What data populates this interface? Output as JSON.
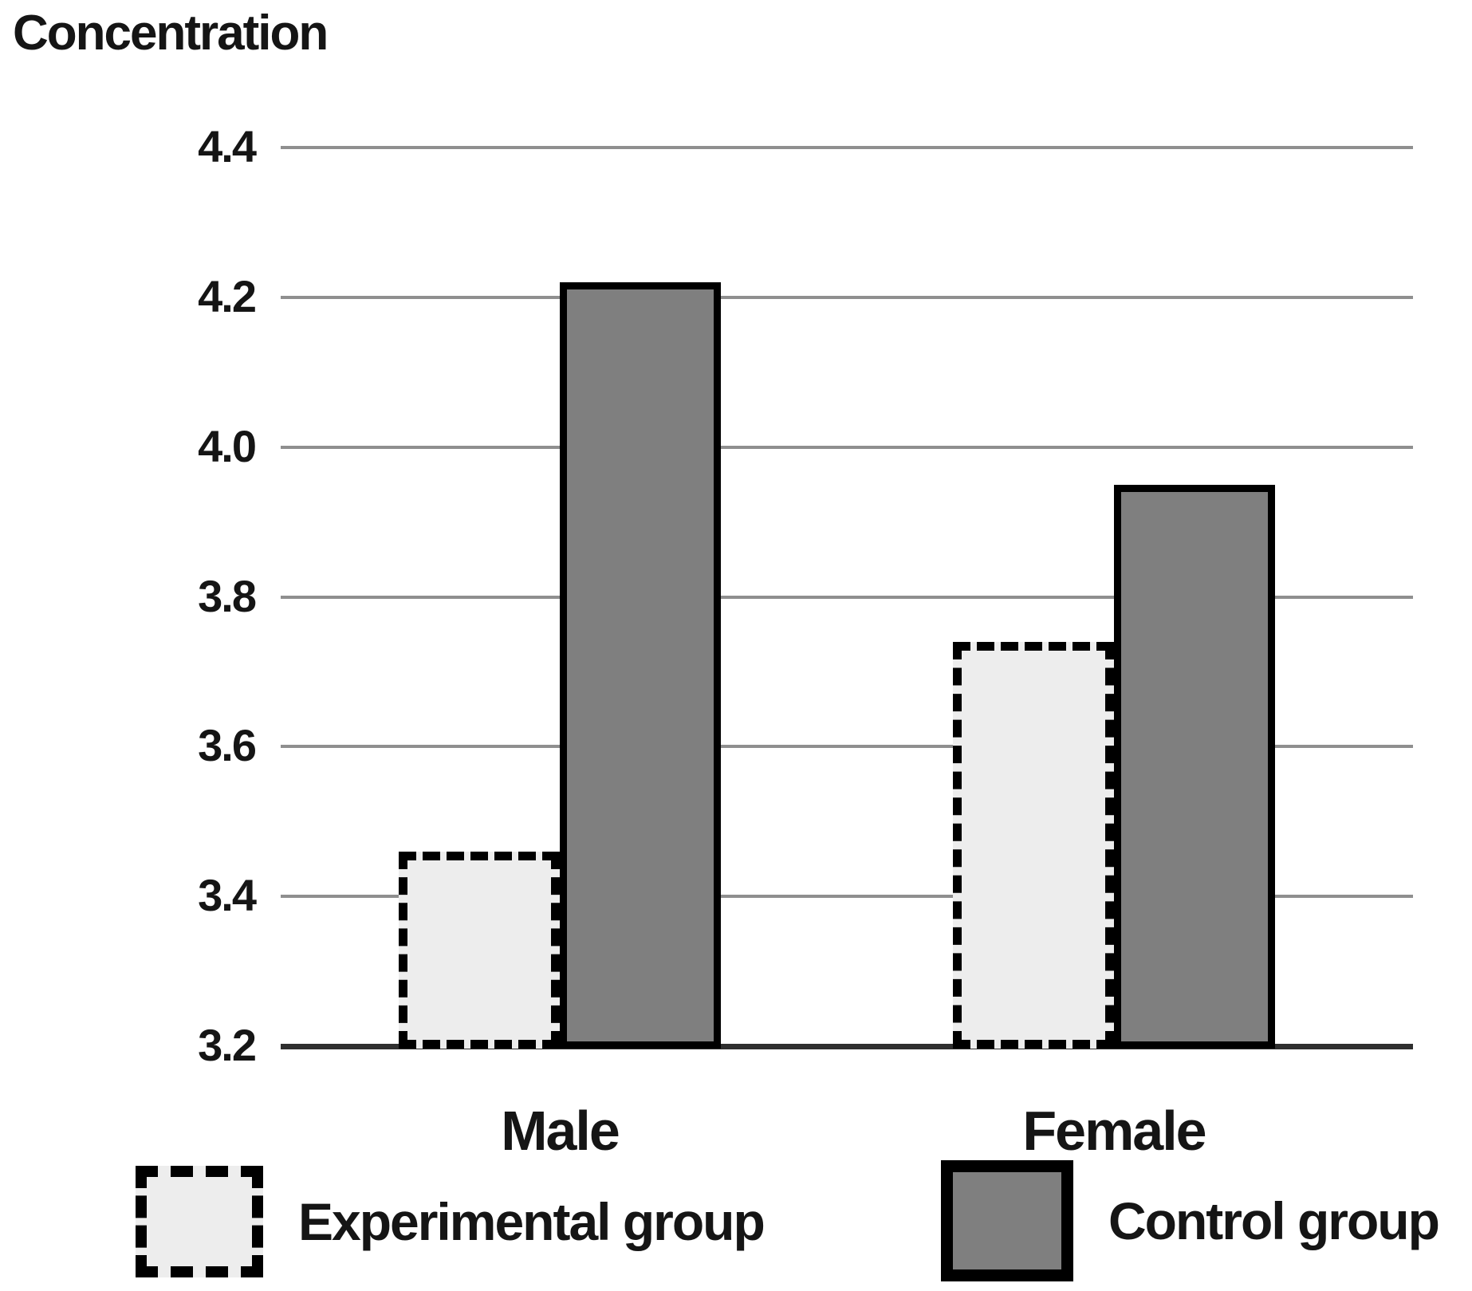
{
  "title": "Concentration",
  "chart_data": {
    "type": "bar",
    "title": "Concentration",
    "categories": [
      "Male",
      "Female"
    ],
    "series": [
      {
        "name": "Experimental group",
        "values": [
          3.46,
          3.74
        ],
        "fill": "#ededed",
        "border_style": "dashed"
      },
      {
        "name": "Control group",
        "values": [
          4.22,
          3.95
        ],
        "fill": "#7f7f7f",
        "border_style": "solid"
      }
    ],
    "ylabel": "Concentration",
    "ylim": [
      3.2,
      4.4
    ],
    "yticks": [
      "4.4",
      "4.2",
      "4.0",
      "3.8",
      "3.6",
      "3.4",
      "3.2"
    ],
    "grid": true,
    "legend_position": "bottom"
  },
  "colors": {
    "experimental_fill": "#ededed",
    "control_fill": "#7f7f7f",
    "bar_border": "#000000",
    "gridline": "#8f8f8f",
    "axis_line": "#2f2f2f",
    "text": "#151515",
    "background": "#ffffff"
  }
}
